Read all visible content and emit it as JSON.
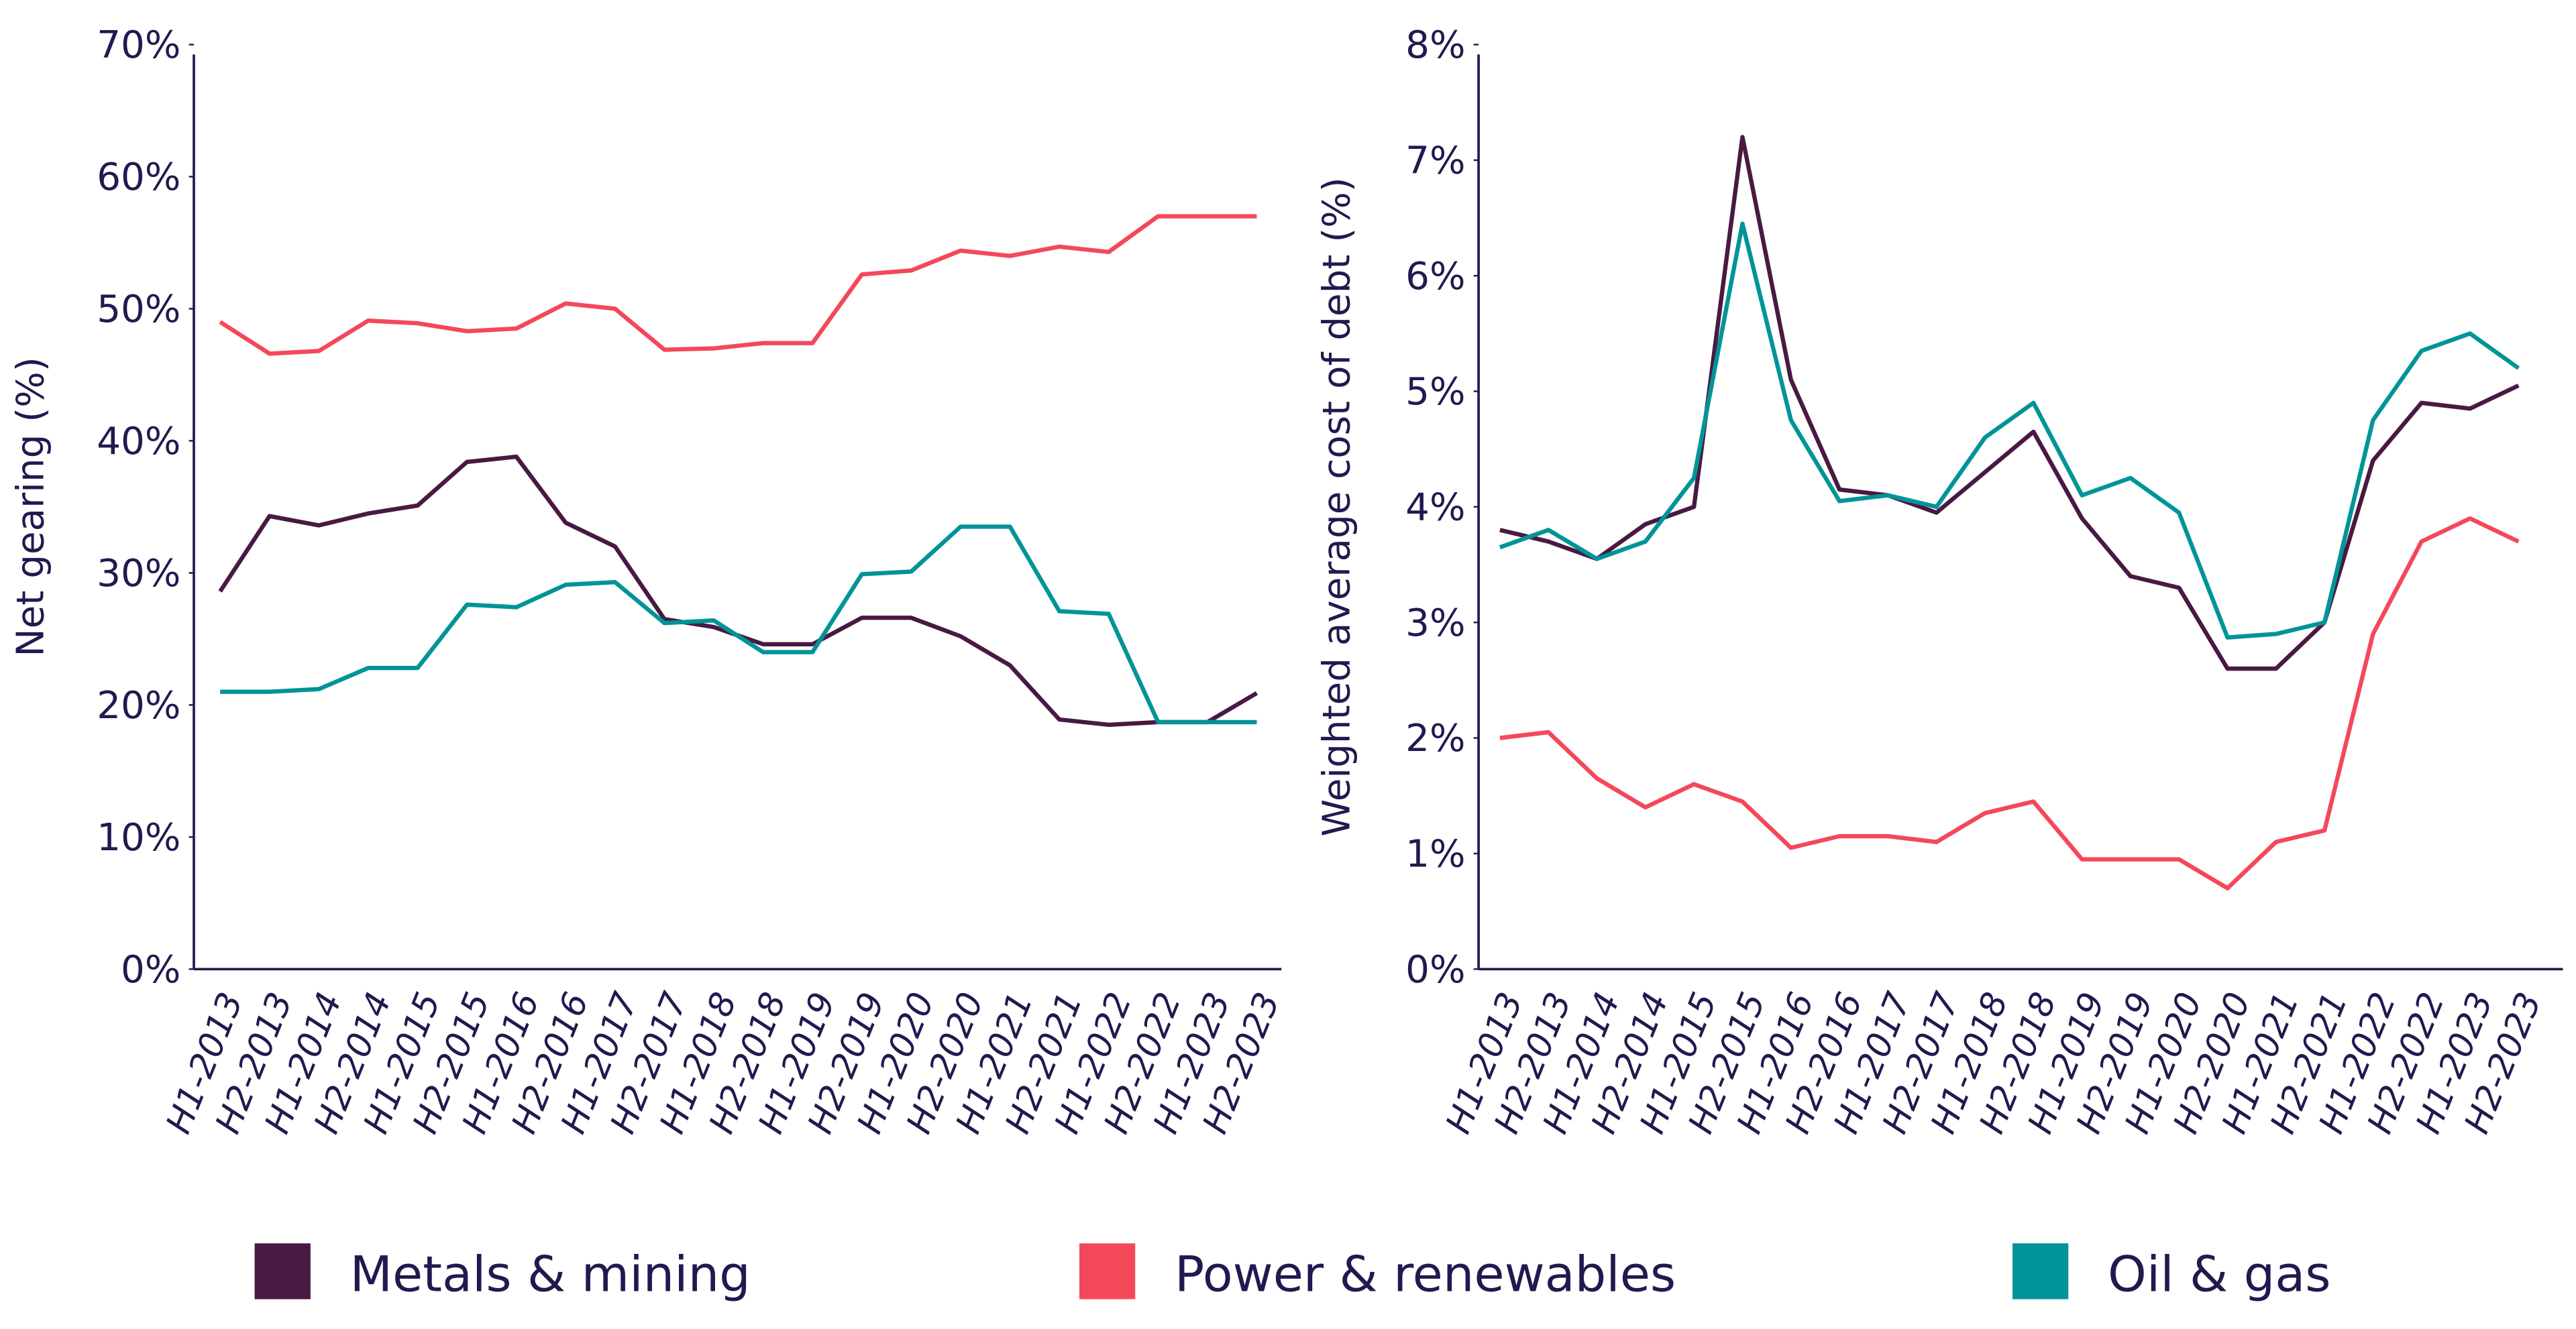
{
  "chart_data": [
    {
      "type": "line",
      "y_label": "Net gearing (%)",
      "categories": [
        "H1-2013",
        "H2-2013",
        "H1-2014",
        "H2-2014",
        "H1-2015",
        "H2-2015",
        "H1-2016",
        "H2-2016",
        "H1-2017",
        "H2-2017",
        "H1-2018",
        "H2-2018",
        "H1-2019",
        "H2-2019",
        "H1-2020",
        "H2-2020",
        "H1-2021",
        "H2-2021",
        "H1-2022",
        "H2-2022",
        "H1-2023",
        "H2-2023"
      ],
      "ylim": [
        0,
        70
      ],
      "yticks": [
        {
          "value": 0,
          "label": "0%"
        },
        {
          "value": 10,
          "label": "10%"
        },
        {
          "value": 20,
          "label": "20%"
        },
        {
          "value": 30,
          "label": "30%"
        },
        {
          "value": 40,
          "label": "40%"
        },
        {
          "value": 50,
          "label": "50%"
        },
        {
          "value": 60,
          "label": "60%"
        },
        {
          "value": 70,
          "label": "70%"
        }
      ],
      "series": [
        {
          "name": "Metals & mining",
          "color": "#4a1942",
          "values": [
            28.6,
            34.3,
            33.6,
            34.5,
            35.1,
            38.4,
            38.8,
            33.8,
            32.0,
            26.5,
            25.9,
            24.6,
            24.6,
            26.6,
            26.6,
            25.2,
            23.0,
            18.9,
            18.5,
            18.7,
            18.7,
            20.9
          ]
        },
        {
          "name": "Power & renewables",
          "color": "#f4485a",
          "values": [
            49.0,
            46.6,
            46.8,
            49.1,
            48.9,
            48.3,
            48.5,
            50.4,
            50.0,
            46.9,
            47.0,
            47.4,
            47.4,
            52.6,
            52.9,
            54.4,
            54.0,
            54.7,
            54.3,
            57.0,
            57.0,
            57.0
          ]
        },
        {
          "name": "Oil & gas",
          "color": "#009499",
          "values": [
            21.0,
            21.0,
            21.2,
            22.8,
            22.8,
            27.6,
            27.4,
            29.1,
            29.3,
            26.2,
            26.4,
            24.0,
            24.0,
            29.9,
            30.1,
            33.5,
            33.5,
            27.1,
            26.9,
            18.7,
            18.7,
            18.7
          ]
        }
      ]
    },
    {
      "type": "line",
      "y_label": "Weighted average cost of debt (%)",
      "categories": [
        "H1-2013",
        "H2-2013",
        "H1-2014",
        "H2-2014",
        "H1-2015",
        "H2-2015",
        "H1-2016",
        "H2-2016",
        "H1-2017",
        "H2-2017",
        "H1-2018",
        "H2-2018",
        "H1-2019",
        "H2-2019",
        "H1-2020",
        "H2-2020",
        "H1-2021",
        "H2-2021",
        "H1-2022",
        "H2-2022",
        "H1-2023",
        "H2-2023"
      ],
      "ylim": [
        0,
        8
      ],
      "yticks": [
        {
          "value": 0,
          "label": "0%"
        },
        {
          "value": 1,
          "label": "1%"
        },
        {
          "value": 2,
          "label": "2%"
        },
        {
          "value": 3,
          "label": "3%"
        },
        {
          "value": 4,
          "label": "4%"
        },
        {
          "value": 5,
          "label": "5%"
        },
        {
          "value": 6,
          "label": "6%"
        },
        {
          "value": 7,
          "label": "7%"
        },
        {
          "value": 8,
          "label": "8%"
        }
      ],
      "series": [
        {
          "name": "Metals & mining",
          "color": "#4a1942",
          "values": [
            3.8,
            3.7,
            3.55,
            3.85,
            4.0,
            7.2,
            5.1,
            4.15,
            4.1,
            3.95,
            4.3,
            4.65,
            3.9,
            3.4,
            3.3,
            2.6,
            2.6,
            3.0,
            4.4,
            4.9,
            4.85,
            5.05
          ]
        },
        {
          "name": "Power & renewables",
          "color": "#f4485a",
          "values": [
            2.0,
            2.05,
            1.65,
            1.4,
            1.6,
            1.45,
            1.05,
            1.15,
            1.15,
            1.1,
            1.35,
            1.45,
            0.95,
            0.95,
            0.95,
            0.7,
            1.1,
            1.2,
            2.9,
            3.7,
            3.9,
            3.7
          ]
        },
        {
          "name": "Oil & gas",
          "color": "#009499",
          "values": [
            3.65,
            3.8,
            3.55,
            3.7,
            4.25,
            6.45,
            4.75,
            4.05,
            4.1,
            4.0,
            4.6,
            4.9,
            4.1,
            4.25,
            3.95,
            2.87,
            2.9,
            3.0,
            4.75,
            5.35,
            5.5,
            5.2
          ]
        }
      ]
    }
  ]
}
